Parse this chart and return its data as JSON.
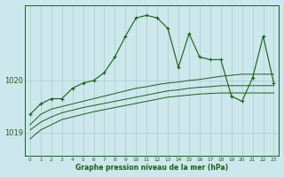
{
  "bg_color": "#cce8ec",
  "grid_color": "#aacccc",
  "line_color": "#1a5c1a",
  "xlabel": "Graphe pression niveau de la mer (hPa)",
  "ylabel_ticks": [
    1019,
    1020
  ],
  "xlim": [
    -0.5,
    23.5
  ],
  "ylim": [
    1018.55,
    1021.45
  ],
  "hours": [
    0,
    1,
    2,
    3,
    4,
    5,
    6,
    7,
    8,
    9,
    10,
    11,
    12,
    13,
    14,
    15,
    16,
    17,
    18,
    19,
    20,
    21,
    22,
    23
  ],
  "series1": [
    1019.35,
    1019.55,
    1019.65,
    1019.65,
    1019.85,
    1019.95,
    1020.0,
    1020.15,
    1020.45,
    1020.85,
    1021.2,
    1021.25,
    1021.2,
    1021.0,
    1020.25,
    1020.9,
    1020.45,
    1020.4,
    1020.4,
    1019.7,
    1019.6,
    1020.05,
    1020.85,
    1019.95
  ],
  "series2": [
    1019.15,
    1019.35,
    1019.45,
    1019.5,
    1019.55,
    1019.6,
    1019.65,
    1019.7,
    1019.75,
    1019.8,
    1019.85,
    1019.88,
    1019.92,
    1019.95,
    1019.97,
    1020.0,
    1020.02,
    1020.05,
    1020.08,
    1020.1,
    1020.12,
    1020.12,
    1020.12,
    1020.12
  ],
  "series3": [
    1019.05,
    1019.2,
    1019.3,
    1019.38,
    1019.43,
    1019.48,
    1019.52,
    1019.56,
    1019.6,
    1019.64,
    1019.68,
    1019.72,
    1019.76,
    1019.8,
    1019.82,
    1019.85,
    1019.87,
    1019.88,
    1019.9,
    1019.9,
    1019.9,
    1019.9,
    1019.9,
    1019.9
  ],
  "series4": [
    1018.88,
    1019.05,
    1019.15,
    1019.25,
    1019.3,
    1019.35,
    1019.4,
    1019.44,
    1019.48,
    1019.52,
    1019.56,
    1019.6,
    1019.64,
    1019.68,
    1019.7,
    1019.72,
    1019.74,
    1019.75,
    1019.76,
    1019.76,
    1019.76,
    1019.76,
    1019.76,
    1019.76
  ]
}
